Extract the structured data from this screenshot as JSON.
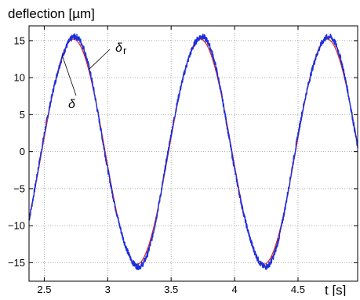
{
  "chart_data": {
    "type": "line",
    "title": "",
    "ylabel": "deflection [µm]",
    "xlabel": "t [s]",
    "xlim": [
      2.38,
      4.97
    ],
    "ylim": [
      -17.5,
      17.0
    ],
    "x_ticks": [
      2.5,
      3,
      3.5,
      4,
      4.5
    ],
    "x_tick_labels": [
      "2.5",
      "3",
      "3.5",
      "4",
      "4.5"
    ],
    "y_ticks": [
      15,
      10,
      5,
      0,
      -5,
      -10,
      -15
    ],
    "y_tick_labels": [
      "15",
      "10",
      "5",
      "0",
      "−5",
      "−10",
      "−15"
    ],
    "grid": true,
    "grid_style": "dotted",
    "series": [
      {
        "key": "reference",
        "color": "#e0201f",
        "style": "smooth sinusoid",
        "amplitude": 15.2,
        "period": 1.0,
        "peak_at": 2.73,
        "x": [
          2.38,
          2.5,
          2.6,
          2.73,
          2.85,
          3.0,
          3.1,
          3.23,
          3.35,
          3.5,
          3.6,
          3.73,
          3.85,
          4.0,
          4.1,
          4.23,
          4.35,
          4.5,
          4.6,
          4.73,
          4.85,
          4.97
        ],
        "y": [
          -9.0,
          4.4,
          12.3,
          15.2,
          11.1,
          -1.1,
          -9.9,
          -15.2,
          -11.1,
          1.1,
          9.9,
          15.2,
          11.1,
          -1.1,
          -9.9,
          -15.2,
          -11.1,
          1.1,
          9.9,
          15.2,
          11.1,
          -2.2
        ]
      },
      {
        "key": "measured",
        "color": "#1c2fdc",
        "style": "noisy sinusoid",
        "amplitude": 15.5,
        "period": 1.0,
        "peak_at": 2.73,
        "x": [
          2.38,
          2.5,
          2.6,
          2.73,
          2.85,
          3.0,
          3.1,
          3.23,
          3.35,
          3.5,
          3.6,
          3.73,
          3.85,
          4.0,
          4.1,
          4.23,
          4.35,
          4.5,
          4.6,
          4.73,
          4.85,
          4.97
        ],
        "y": [
          -9.3,
          4.6,
          12.6,
          15.5,
          10.4,
          -1.2,
          -10.2,
          -15.7,
          -10.6,
          1.2,
          10.2,
          15.5,
          10.4,
          -1.2,
          -10.2,
          -15.7,
          -10.6,
          1.2,
          10.2,
          15.5,
          10.4,
          -2.3
        ]
      }
    ],
    "annotations": [
      {
        "key": "delta-r",
        "main": "δ",
        "sub": "r",
        "points_to_series": "reference"
      },
      {
        "key": "delta",
        "main": "δ",
        "sub": "",
        "points_to_series": "measured"
      }
    ]
  }
}
